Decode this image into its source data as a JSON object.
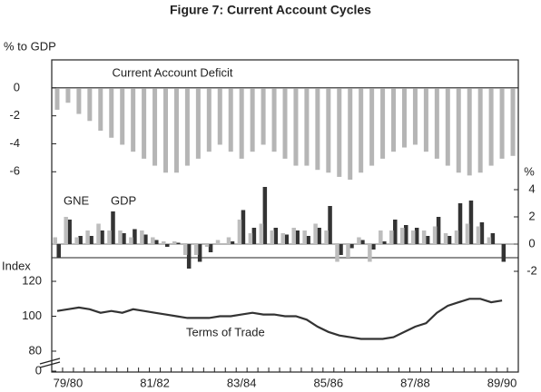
{
  "title": "Figure 7: Current Account Cycles",
  "chart_data": [
    {
      "type": "bar",
      "title": "Current Account Deficit",
      "y_label": "% to GDP",
      "color": "#b5b5b5",
      "values": [
        -1.5,
        -1,
        -1.8,
        -2.3,
        -3,
        -3.5,
        -4,
        -4.5,
        -5,
        -5.5,
        -6,
        -6,
        -5.5,
        -5,
        -4.5,
        -4,
        -4.5,
        -5,
        -4.5,
        -4,
        -4.5,
        -5,
        -5.5,
        -5.5,
        -5.8,
        -6,
        -6.3,
        -6.5,
        -6,
        -5.5,
        -5,
        -4.5,
        -4.2,
        -4,
        -4.5,
        -5,
        -5.5,
        -6,
        -6.2,
        -6,
        -5.5,
        -5,
        -4.8
      ],
      "ylim": [
        -7,
        2
      ],
      "yticks": [
        0,
        -2,
        -4,
        -6
      ]
    },
    {
      "type": "bar",
      "y2_label": "%",
      "series": [
        {
          "name": "GNE",
          "color": "#333333",
          "axis": "y2",
          "values": [
            -1,
            1.8,
            0.6,
            0.6,
            1,
            2.4,
            0.8,
            1.1,
            0.7,
            0.3,
            -0.2,
            0.1,
            -1.8,
            -1.3,
            -0.6,
            0,
            0.2,
            2.5,
            1.2,
            4.2,
            1.2,
            0.7,
            1,
            0.6,
            1.2,
            2.8,
            -0.8,
            -0.3,
            0.3,
            -0.4,
            0.2,
            1.8,
            1.4,
            1.2,
            0.6,
            2,
            0.6,
            3,
            3.2,
            1.6,
            0.8,
            -1.3,
            0
          ]
        },
        {
          "name": "GDP",
          "color": "#bdbdbd",
          "axis": "y2",
          "values": [
            0.5,
            2,
            0.5,
            1,
            1.5,
            1,
            1,
            0.5,
            1,
            0.5,
            0.2,
            0.2,
            -0.8,
            -0.8,
            -0.2,
            0.3,
            0.5,
            1.8,
            0.8,
            1.5,
            1,
            0.8,
            1.2,
            1,
            1.5,
            1,
            -1.3,
            -1,
            0.5,
            -1.3,
            1,
            1,
            1.2,
            1,
            1,
            1.3,
            0.8,
            1,
            1.5,
            1.3,
            0.5,
            0,
            0
          ]
        }
      ],
      "y2lim": [
        -2.5,
        4.5
      ],
      "y2ticks": [
        4,
        2,
        0,
        -2
      ]
    },
    {
      "type": "line",
      "y_label": "Index",
      "annotation": "Terms of Trade",
      "categories": [
        null,
        "79/80",
        null,
        null,
        null,
        null,
        null,
        null,
        null,
        "81/82",
        null,
        null,
        null,
        null,
        null,
        null,
        null,
        "83/84",
        null,
        null,
        null,
        null,
        null,
        null,
        null,
        "85/86",
        null,
        null,
        null,
        null,
        null,
        null,
        null,
        "87/88",
        null,
        null,
        null,
        null,
        null,
        null,
        null,
        "89/90",
        null
      ],
      "series": [
        {
          "name": "Terms of Trade",
          "color": "#333333",
          "values": [
            103,
            104,
            105,
            104,
            102,
            103,
            102,
            104,
            103,
            102,
            101,
            100,
            99,
            99,
            99,
            100,
            100,
            101,
            102,
            101,
            101,
            100,
            100,
            98,
            94,
            91,
            89,
            88,
            87,
            87,
            87,
            88,
            91,
            94,
            96,
            102,
            106,
            108,
            110,
            110,
            108,
            109,
            null
          ]
        }
      ],
      "ylim": [
        75,
        125
      ],
      "yticks": [
        120,
        100,
        80,
        0
      ],
      "axis_break": true
    }
  ]
}
